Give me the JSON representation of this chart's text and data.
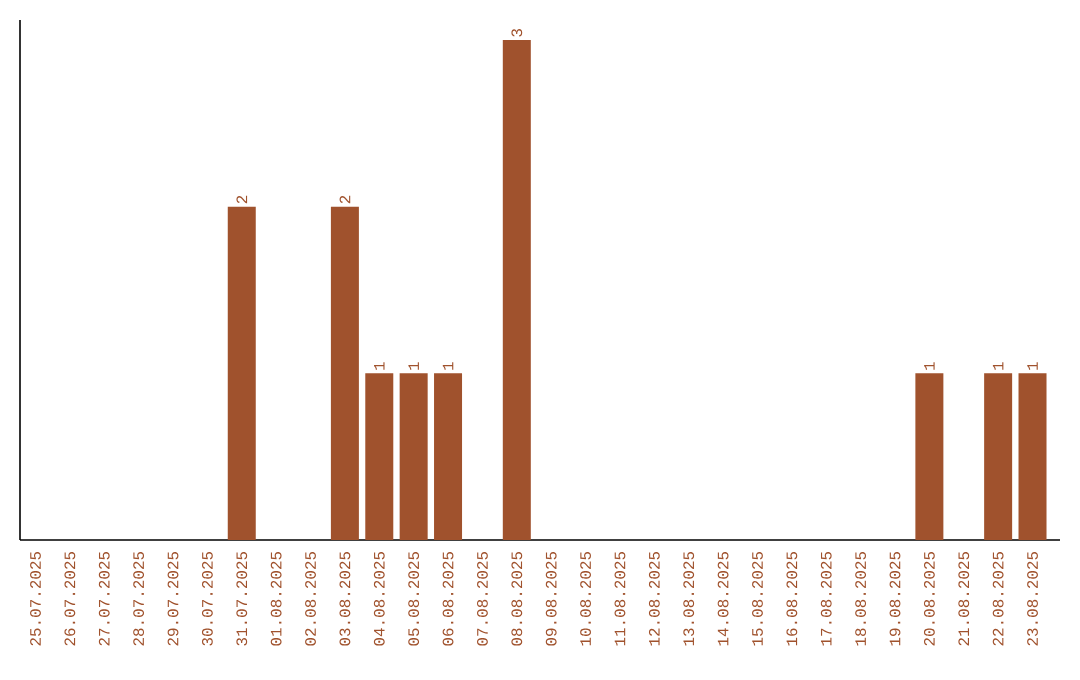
{
  "chart_data": {
    "type": "bar",
    "categories": [
      "25.07.2025",
      "26.07.2025",
      "27.07.2025",
      "28.07.2025",
      "29.07.2025",
      "30.07.2025",
      "31.07.2025",
      "01.08.2025",
      "02.08.2025",
      "03.08.2025",
      "04.08.2025",
      "05.08.2025",
      "06.08.2025",
      "07.08.2025",
      "08.08.2025",
      "09.08.2025",
      "10.08.2025",
      "11.08.2025",
      "12.08.2025",
      "13.08.2025",
      "14.08.2025",
      "15.08.2025",
      "16.08.2025",
      "17.08.2025",
      "18.08.2025",
      "19.08.2025",
      "20.08.2025",
      "21.08.2025",
      "22.08.2025",
      "23.08.2025"
    ],
    "values": [
      0,
      0,
      0,
      0,
      0,
      0,
      2,
      0,
      0,
      2,
      1,
      1,
      1,
      0,
      3,
      0,
      0,
      0,
      0,
      0,
      0,
      0,
      0,
      0,
      0,
      0,
      1,
      0,
      1,
      1
    ],
    "value_labels": [
      null,
      null,
      null,
      null,
      null,
      null,
      "2",
      null,
      null,
      "2",
      "1",
      "1",
      "1",
      null,
      "3",
      null,
      null,
      null,
      null,
      null,
      null,
      null,
      null,
      null,
      null,
      null,
      "1",
      null,
      "1",
      "1"
    ],
    "color": "#a0522d"
  }
}
